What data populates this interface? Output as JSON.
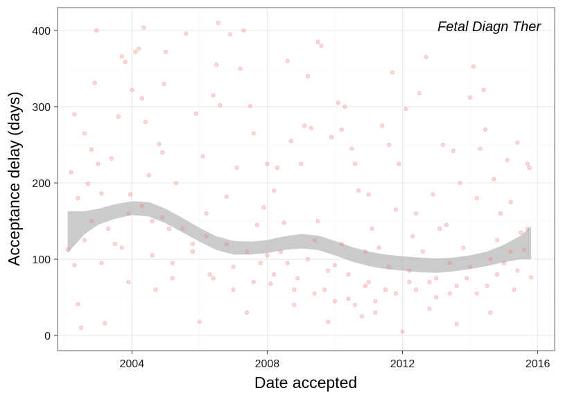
{
  "chart_data": {
    "type": "scatter",
    "annotation": "Fetal Diagn Ther",
    "xlabel": "Date accepted",
    "ylabel": "Acceptance delay (days)",
    "xlim": [
      2001.8,
      2016.5
    ],
    "ylim": [
      -20,
      430
    ],
    "x_ticks": [
      {
        "value": 2004,
        "label": "2004"
      },
      {
        "value": 2008,
        "label": "2008"
      },
      {
        "value": 2012,
        "label": "2012"
      },
      {
        "value": 2016,
        "label": "2016"
      }
    ],
    "y_ticks": [
      {
        "value": 0,
        "label": "0"
      },
      {
        "value": 100,
        "label": "100"
      },
      {
        "value": 200,
        "label": "200"
      },
      {
        "value": 300,
        "label": "300"
      },
      {
        "value": 400,
        "label": "400"
      }
    ],
    "grid": true,
    "point_color": "#f08080",
    "band_color": "#bebebe",
    "points": [
      [
        2002.1,
        113
      ],
      [
        2002.2,
        214
      ],
      [
        2002.3,
        290
      ],
      [
        2002.3,
        92
      ],
      [
        2002.4,
        41
      ],
      [
        2002.5,
        10
      ],
      [
        2002.6,
        265
      ],
      [
        2002.7,
        199
      ],
      [
        2002.8,
        244
      ],
      [
        2002.9,
        331
      ],
      [
        2002.95,
        400
      ],
      [
        2003.0,
        225
      ],
      [
        2003.1,
        186
      ],
      [
        2003.2,
        16
      ],
      [
        2003.4,
        232
      ],
      [
        2003.5,
        120
      ],
      [
        2003.6,
        287
      ],
      [
        2003.7,
        366
      ],
      [
        2003.8,
        359
      ],
      [
        2003.9,
        70
      ],
      [
        2003.95,
        185
      ],
      [
        2004.0,
        322
      ],
      [
        2004.1,
        372
      ],
      [
        2004.2,
        376
      ],
      [
        2004.3,
        311
      ],
      [
        2004.35,
        404
      ],
      [
        2004.4,
        280
      ],
      [
        2004.5,
        210
      ],
      [
        2004.6,
        150
      ],
      [
        2004.7,
        60
      ],
      [
        2004.8,
        251
      ],
      [
        2004.9,
        240
      ],
      [
        2004.95,
        330
      ],
      [
        2005.0,
        372
      ],
      [
        2005.1,
        140
      ],
      [
        2005.2,
        75
      ],
      [
        2005.3,
        200
      ],
      [
        2005.6,
        396
      ],
      [
        2005.8,
        120
      ],
      [
        2005.9,
        291
      ],
      [
        2006.0,
        18
      ],
      [
        2006.1,
        235
      ],
      [
        2006.2,
        160
      ],
      [
        2006.3,
        80
      ],
      [
        2006.4,
        315
      ],
      [
        2006.5,
        355
      ],
      [
        2006.55,
        410
      ],
      [
        2006.6,
        302
      ],
      [
        2006.8,
        182
      ],
      [
        2006.9,
        395
      ],
      [
        2007.0,
        60
      ],
      [
        2007.1,
        220
      ],
      [
        2007.2,
        350
      ],
      [
        2007.3,
        400
      ],
      [
        2007.4,
        30
      ],
      [
        2007.5,
        301
      ],
      [
        2007.6,
        265
      ],
      [
        2007.7,
        145
      ],
      [
        2007.8,
        95
      ],
      [
        2007.9,
        168
      ],
      [
        2008.0,
        225
      ],
      [
        2008.1,
        68
      ],
      [
        2008.2,
        190
      ],
      [
        2008.3,
        220
      ],
      [
        2008.4,
        110
      ],
      [
        2008.5,
        148
      ],
      [
        2008.6,
        360
      ],
      [
        2008.7,
        255
      ],
      [
        2008.8,
        40
      ],
      [
        2008.9,
        75
      ],
      [
        2009.0,
        225
      ],
      [
        2009.1,
        275
      ],
      [
        2009.2,
        340
      ],
      [
        2009.3,
        272
      ],
      [
        2009.4,
        125
      ],
      [
        2009.5,
        385
      ],
      [
        2009.6,
        380
      ],
      [
        2009.7,
        60
      ],
      [
        2009.8,
        18
      ],
      [
        2009.9,
        260
      ],
      [
        2010.0,
        92
      ],
      [
        2010.1,
        305
      ],
      [
        2010.2,
        270
      ],
      [
        2010.3,
        300
      ],
      [
        2010.4,
        48
      ],
      [
        2010.5,
        245
      ],
      [
        2010.6,
        225
      ],
      [
        2010.7,
        190
      ],
      [
        2010.8,
        25
      ],
      [
        2010.9,
        65
      ],
      [
        2011.0,
        185
      ],
      [
        2011.1,
        140
      ],
      [
        2011.2,
        30
      ],
      [
        2011.3,
        115
      ],
      [
        2011.4,
        275
      ],
      [
        2011.5,
        60
      ],
      [
        2011.6,
        250
      ],
      [
        2011.7,
        345
      ],
      [
        2011.8,
        165
      ],
      [
        2011.9,
        225
      ],
      [
        2012.0,
        5
      ],
      [
        2012.1,
        297
      ],
      [
        2012.2,
        70
      ],
      [
        2012.3,
        130
      ],
      [
        2012.4,
        160
      ],
      [
        2012.5,
        318
      ],
      [
        2012.6,
        110
      ],
      [
        2012.7,
        365
      ],
      [
        2012.8,
        35
      ],
      [
        2012.9,
        185
      ],
      [
        2013.0,
        75
      ],
      [
        2013.1,
        140
      ],
      [
        2013.2,
        250
      ],
      [
        2013.3,
        145
      ],
      [
        2013.4,
        55
      ],
      [
        2013.5,
        242
      ],
      [
        2013.6,
        15
      ],
      [
        2013.7,
        200
      ],
      [
        2013.8,
        115
      ],
      [
        2013.9,
        75
      ],
      [
        2014.0,
        312
      ],
      [
        2014.1,
        353
      ],
      [
        2014.2,
        180
      ],
      [
        2014.3,
        245
      ],
      [
        2014.4,
        322
      ],
      [
        2014.45,
        270
      ],
      [
        2014.5,
        65
      ],
      [
        2014.6,
        30
      ],
      [
        2014.7,
        205
      ],
      [
        2014.8,
        125
      ],
      [
        2014.9,
        160
      ],
      [
        2015.0,
        95
      ],
      [
        2015.1,
        230
      ],
      [
        2015.2,
        175
      ],
      [
        2015.3,
        60
      ],
      [
        2015.4,
        253
      ],
      [
        2015.5,
        135
      ],
      [
        2015.6,
        112
      ],
      [
        2015.7,
        225
      ],
      [
        2015.75,
        220
      ],
      [
        2015.8,
        76
      ],
      [
        2002.4,
        180
      ],
      [
        2002.8,
        150
      ],
      [
        2003.3,
        140
      ],
      [
        2003.9,
        160
      ],
      [
        2004.3,
        170
      ],
      [
        2004.9,
        155
      ],
      [
        2005.5,
        140
      ],
      [
        2006.2,
        130
      ],
      [
        2006.8,
        120
      ],
      [
        2007.4,
        110
      ],
      [
        2008.0,
        105
      ],
      [
        2008.6,
        95
      ],
      [
        2009.2,
        100
      ],
      [
        2009.8,
        85
      ],
      [
        2010.4,
        80
      ],
      [
        2011.0,
        70
      ],
      [
        2011.6,
        90
      ],
      [
        2012.2,
        85
      ],
      [
        2012.8,
        70
      ],
      [
        2013.4,
        95
      ],
      [
        2014.0,
        90
      ],
      [
        2014.6,
        100
      ],
      [
        2015.2,
        110
      ],
      [
        2015.7,
        140
      ],
      [
        2002.6,
        125
      ],
      [
        2003.1,
        95
      ],
      [
        2003.7,
        115
      ],
      [
        2004.6,
        105
      ],
      [
        2005.2,
        95
      ],
      [
        2005.8,
        110
      ],
      [
        2006.4,
        75
      ],
      [
        2007.0,
        90
      ],
      [
        2007.6,
        70
      ],
      [
        2008.2,
        80
      ],
      [
        2008.8,
        60
      ],
      [
        2009.4,
        55
      ],
      [
        2010.0,
        45
      ],
      [
        2010.6,
        40
      ],
      [
        2011.2,
        45
      ],
      [
        2011.8,
        55
      ],
      [
        2012.4,
        60
      ],
      [
        2013.0,
        50
      ],
      [
        2013.6,
        65
      ],
      [
        2014.2,
        55
      ],
      [
        2014.8,
        80
      ],
      [
        2015.4,
        85
      ],
      [
        2009.5,
        150
      ],
      [
        2010.2,
        120
      ],
      [
        2010.9,
        110
      ]
    ],
    "smooth_band": [
      {
        "x": 2002.1,
        "lower": 108,
        "upper": 163
      },
      {
        "x": 2002.6,
        "lower": 133,
        "upper": 163
      },
      {
        "x": 2003.0,
        "lower": 145,
        "upper": 166
      },
      {
        "x": 2003.5,
        "lower": 153,
        "upper": 172
      },
      {
        "x": 2004.0,
        "lower": 158,
        "upper": 176
      },
      {
        "x": 2004.5,
        "lower": 156,
        "upper": 175
      },
      {
        "x": 2005.0,
        "lower": 147,
        "upper": 166
      },
      {
        "x": 2005.5,
        "lower": 135,
        "upper": 154
      },
      {
        "x": 2006.0,
        "lower": 123,
        "upper": 141
      },
      {
        "x": 2006.5,
        "lower": 112,
        "upper": 130
      },
      {
        "x": 2007.0,
        "lower": 106,
        "upper": 124
      },
      {
        "x": 2007.5,
        "lower": 106,
        "upper": 123
      },
      {
        "x": 2008.0,
        "lower": 108,
        "upper": 125
      },
      {
        "x": 2008.5,
        "lower": 112,
        "upper": 130
      },
      {
        "x": 2009.0,
        "lower": 114,
        "upper": 133
      },
      {
        "x": 2009.5,
        "lower": 112,
        "upper": 131
      },
      {
        "x": 2010.0,
        "lower": 105,
        "upper": 124
      },
      {
        "x": 2010.5,
        "lower": 97,
        "upper": 116
      },
      {
        "x": 2011.0,
        "lower": 91,
        "upper": 110
      },
      {
        "x": 2011.5,
        "lower": 87,
        "upper": 106
      },
      {
        "x": 2012.0,
        "lower": 85,
        "upper": 104
      },
      {
        "x": 2012.5,
        "lower": 83,
        "upper": 102
      },
      {
        "x": 2013.0,
        "lower": 82,
        "upper": 101
      },
      {
        "x": 2013.5,
        "lower": 84,
        "upper": 102
      },
      {
        "x": 2014.0,
        "lower": 87,
        "upper": 105
      },
      {
        "x": 2014.5,
        "lower": 91,
        "upper": 110
      },
      {
        "x": 2015.0,
        "lower": 96,
        "upper": 119
      },
      {
        "x": 2015.5,
        "lower": 100,
        "upper": 131
      },
      {
        "x": 2015.8,
        "lower": 100,
        "upper": 143
      }
    ]
  }
}
